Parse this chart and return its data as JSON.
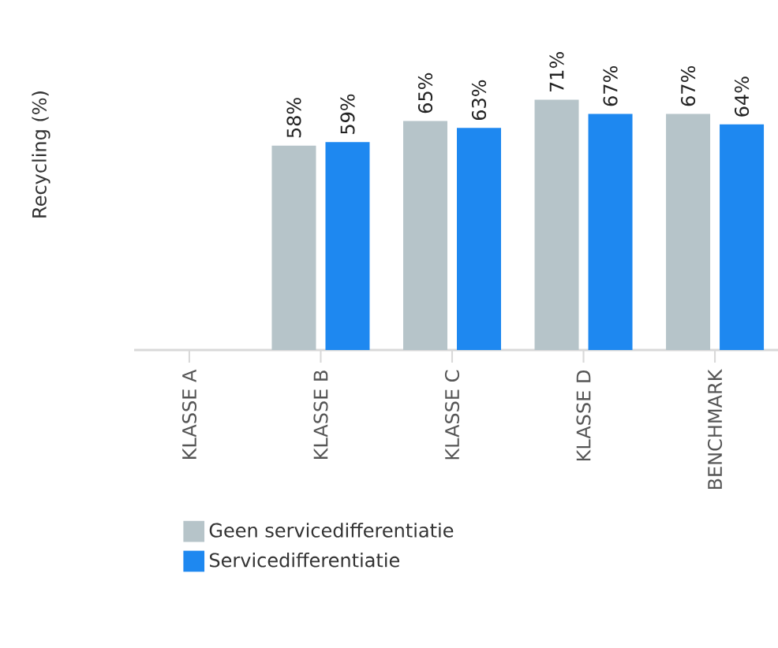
{
  "chart_data": {
    "type": "bar",
    "ylabel": "Recycling (%)",
    "categories": [
      "KLASSE A",
      "KLASSE B",
      "KLASSE C",
      "KLASSE D",
      "BENCHMARK"
    ],
    "series": [
      {
        "name": "Geen servicedifferentiatie",
        "color": "#b6c4c9",
        "values": [
          null,
          58,
          65,
          71,
          67
        ],
        "value_labels": [
          null,
          "58%",
          "65%",
          "71%",
          "67%"
        ]
      },
      {
        "name": "Servicedifferentiatie",
        "color": "#1e88f0",
        "values": [
          null,
          59,
          63,
          67,
          64
        ],
        "value_labels": [
          null,
          "59%",
          "63%",
          "67%",
          "64%"
        ]
      }
    ],
    "legend": "bottom"
  }
}
